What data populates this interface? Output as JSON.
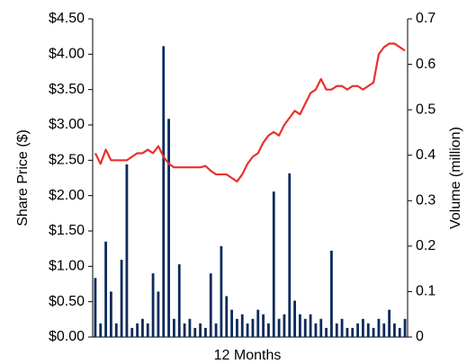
{
  "chart_data": {
    "type": "combo",
    "x_label": "12 Months",
    "y_label": "Share Price ($)",
    "y2_label": "Volume (million)",
    "categories": [
      null,
      null,
      null,
      null,
      null,
      null,
      null,
      null,
      null,
      null,
      null,
      null,
      null,
      null,
      null,
      null,
      null,
      null,
      null,
      null,
      null,
      null,
      null,
      null,
      null,
      null,
      null,
      null,
      null,
      null,
      null,
      null,
      null,
      null,
      null,
      null,
      null,
      null,
      null,
      null,
      null,
      null,
      null,
      null,
      null,
      null,
      null,
      null,
      null,
      null,
      null,
      null,
      null,
      null,
      null,
      null,
      null,
      null,
      null,
      null
    ],
    "series": [
      {
        "type": "bar",
        "axis": "y2",
        "color": "#0d2a5c",
        "values": [
          0.13,
          0.03,
          0.21,
          0.1,
          0.03,
          0.17,
          0.38,
          0.02,
          0.03,
          0.04,
          0.03,
          0.14,
          0.1,
          0.64,
          0.48,
          0.04,
          0.16,
          0.03,
          0.04,
          0.02,
          0.03,
          0.02,
          0.14,
          0.03,
          0.2,
          0.09,
          0.06,
          0.04,
          0.05,
          0.03,
          0.04,
          0.06,
          0.05,
          0.03,
          0.32,
          0.04,
          0.05,
          0.36,
          0.08,
          0.05,
          0.04,
          0.05,
          0.03,
          0.04,
          0.02,
          0.19,
          0.03,
          0.04,
          0.02,
          0.02,
          0.03,
          0.04,
          0.03,
          0.02,
          0.04,
          0.03,
          0.06,
          0.03,
          0.02,
          0.04
        ]
      },
      {
        "type": "line",
        "axis": "y",
        "color": "#e8322b",
        "values": [
          2.6,
          2.45,
          2.65,
          2.5,
          2.5,
          2.5,
          2.5,
          2.55,
          2.6,
          2.6,
          2.65,
          2.6,
          2.7,
          2.55,
          2.45,
          2.4,
          2.4,
          2.4,
          2.4,
          2.4,
          2.4,
          2.42,
          2.35,
          2.3,
          2.3,
          2.3,
          2.25,
          2.2,
          2.3,
          2.45,
          2.55,
          2.6,
          2.75,
          2.85,
          2.9,
          2.85,
          3.0,
          3.1,
          3.2,
          3.15,
          3.3,
          3.45,
          3.5,
          3.65,
          3.5,
          3.5,
          3.55,
          3.55,
          3.5,
          3.55,
          3.55,
          3.5,
          3.55,
          3.6,
          4.0,
          4.1,
          4.15,
          4.15,
          4.1,
          4.05
        ]
      }
    ],
    "ylim": [
      0,
      4.5
    ],
    "yticks": [
      {
        "value": 0,
        "label": "$0.00"
      },
      {
        "value": 0.5,
        "label": "$0.50"
      },
      {
        "value": 1,
        "label": "$1.00"
      },
      {
        "value": 1.5,
        "label": "$1.50"
      },
      {
        "value": 2,
        "label": "$2.00"
      },
      {
        "value": 2.5,
        "label": "$2.50"
      },
      {
        "value": 3,
        "label": "$3.00"
      },
      {
        "value": 3.5,
        "label": "$3.50"
      },
      {
        "value": 4,
        "label": "$4.00"
      },
      {
        "value": 4.5,
        "label": "$4.50"
      }
    ],
    "y2lim": [
      0,
      0.7
    ],
    "y2ticks": [
      0,
      0.1,
      0.2,
      0.3,
      0.4,
      0.5,
      0.6,
      0.7
    ]
  }
}
